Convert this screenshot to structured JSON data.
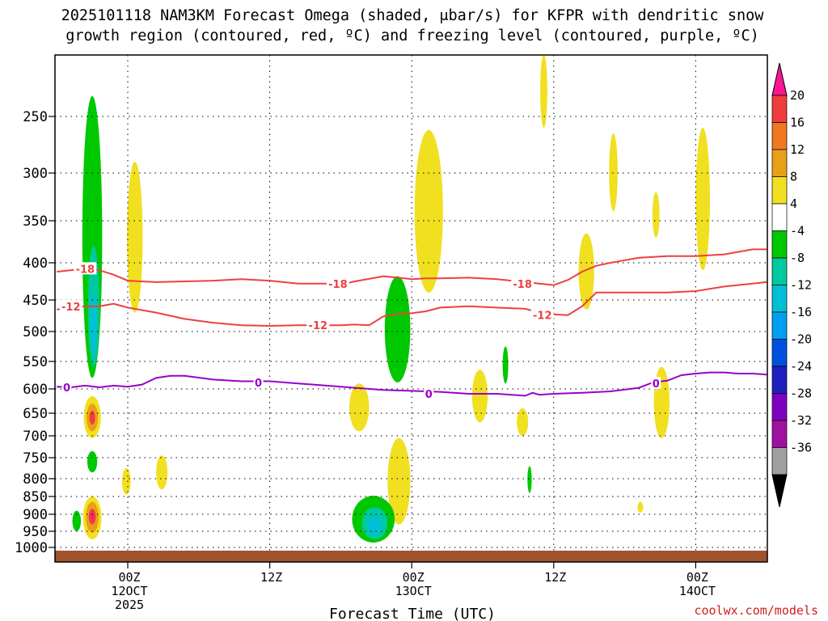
{
  "chart_data": {
    "type": "time-height cross section",
    "title_line1": "2025101118 NAM3KM Forecast Omega (shaded, μbar/s) for KFPR with dendritic snow",
    "title_line2": "growth region (contoured, red, ºC) and freezing level (contoured, purple, ºC)",
    "xlabel": "Forecast Time (UTC)",
    "credit": "coolwx.com/models",
    "xlim_hours": [
      -5,
      45
    ],
    "ylim_hpa": [
      1010,
      195
    ],
    "y_ticks": [
      250,
      300,
      350,
      400,
      450,
      500,
      550,
      600,
      650,
      700,
      750,
      800,
      850,
      900,
      950,
      1000
    ],
    "x_ticks": [
      {
        "hour": 0,
        "line1": "00Z",
        "line2": "12OCT",
        "line3": "2025"
      },
      {
        "hour": 10,
        "line1": "12Z",
        "line2": "",
        "line3": ""
      },
      {
        "hour": 20,
        "line1": "00Z",
        "line2": "13OCT",
        "line3": ""
      },
      {
        "hour": 30,
        "line1": "12Z",
        "line2": "",
        "line3": ""
      },
      {
        "hour": 40,
        "line1": "00Z",
        "line2": "14OCT",
        "line3": ""
      }
    ],
    "colorbar": {
      "labels": [
        "20",
        "16",
        "12",
        "8",
        "4",
        "-4",
        "-8",
        "-12",
        "-16",
        "-20",
        "-24",
        "-28",
        "-32",
        "-36"
      ],
      "colors": [
        "#ff1493",
        "#f03c3c",
        "#f07820",
        "#e8a018",
        "#f0e020",
        "#ffffff",
        "#00c800",
        "#00c8a0",
        "#00c0d8",
        "#00a0f0",
        "#0050e0",
        "#2020c0",
        "#8000c0",
        "#a010a0",
        "#a0a0a0",
        "#000000"
      ]
    },
    "contours": [
      {
        "name": "dgz -18",
        "label": "-18",
        "color": "#ee4040",
        "x": [
          -5,
          -3,
          -2,
          -1,
          0,
          2,
          4,
          6,
          8,
          10,
          12,
          14,
          15,
          16,
          18,
          20,
          21,
          22,
          24,
          26,
          28,
          29,
          30,
          31,
          32,
          33,
          34,
          36,
          38,
          40,
          42,
          44,
          45
        ],
        "p": [
          412,
          408,
          410,
          416,
          424,
          426,
          425,
          424,
          422,
          424,
          428,
          428,
          429,
          425,
          418,
          422,
          421,
          421,
          420,
          422,
          426,
          428,
          430,
          423,
          412,
          404,
          400,
          394,
          392,
          392,
          390,
          384,
          384
        ]
      },
      {
        "name": "dgz -12",
        "label": "-12",
        "color": "#ee4040",
        "x": [
          -5,
          -3,
          -2,
          -1,
          0,
          2,
          4,
          6,
          8,
          10,
          12,
          14,
          15,
          16,
          17,
          18,
          19,
          20,
          21,
          22,
          24,
          26,
          28,
          29,
          30,
          31,
          32,
          33,
          34,
          36,
          38,
          40,
          42,
          44,
          45
        ],
        "p": [
          465,
          460,
          460,
          456,
          462,
          470,
          480,
          486,
          490,
          491,
          490,
          490,
          490,
          489,
          490,
          476,
          472,
          471,
          468,
          462,
          460,
          462,
          464,
          470,
          473,
          474,
          460,
          440,
          440,
          440,
          440,
          438,
          432,
          428,
          426
        ]
      },
      {
        "name": "freezing level 0",
        "label": "0",
        "color": "#9900cc",
        "x": [
          -5,
          -4,
          -3,
          -2,
          -1,
          0,
          1,
          2,
          3,
          4,
          6,
          8,
          10,
          12,
          14,
          16,
          18,
          20,
          22,
          24,
          26,
          28,
          28.5,
          29,
          30,
          32,
          34,
          36,
          37,
          38,
          39,
          40,
          41,
          42,
          43,
          44,
          45
        ],
        "p": [
          596,
          597,
          594,
          597,
          594,
          596,
          592,
          580,
          576,
          576,
          583,
          586,
          586,
          590,
          594,
          598,
          602,
          604,
          606,
          610,
          610,
          614,
          608,
          612,
          610,
          608,
          605,
          598,
          588,
          585,
          575,
          572,
          570,
          570,
          572,
          572,
          574
        ]
      }
    ],
    "contour_labels": [
      {
        "text": "-18",
        "color": "#ee4040",
        "x": -3,
        "p": 408
      },
      {
        "text": "-18",
        "color": "#ee4040",
        "x": 14.8,
        "p": 428
      },
      {
        "text": "-18",
        "color": "#ee4040",
        "x": 27.8,
        "p": 428
      },
      {
        "text": "-12",
        "color": "#ee4040",
        "x": -4,
        "p": 460
      },
      {
        "text": "-12",
        "color": "#ee4040",
        "x": 13.4,
        "p": 490
      },
      {
        "text": "-12",
        "color": "#ee4040",
        "x": 29.2,
        "p": 474
      },
      {
        "text": "0",
        "color": "#9900cc",
        "x": -4.3,
        "p": 597
      },
      {
        "text": "0",
        "color": "#9900cc",
        "x": 9.2,
        "p": 588
      },
      {
        "text": "0",
        "color": "#9900cc",
        "x": 21.2,
        "p": 610
      },
      {
        "text": "0",
        "color": "#9900cc",
        "x": 37.2,
        "p": 590
      }
    ],
    "omega_features": [
      {
        "name": "rising column green",
        "color": "#00c800",
        "x": -2.5,
        "w": 1.4,
        "p_top": 232,
        "p_bot": 580
      },
      {
        "name": "rising column teal",
        "color": "#00c8a0",
        "x": -2.4,
        "w": 0.8,
        "p_top": 380,
        "p_bot": 560
      },
      {
        "name": "rising column cyan",
        "color": "#00c0d8",
        "x": -2.4,
        "w": 0.4,
        "p_top": 440,
        "p_bot": 540
      },
      {
        "name": "sinking 650 yellow",
        "color": "#f0e020",
        "x": -2.5,
        "w": 1.2,
        "p_top": 615,
        "p_bot": 705
      },
      {
        "name": "sinking 650 orange",
        "color": "#e8a018",
        "x": -2.5,
        "w": 0.8,
        "p_top": 630,
        "p_bot": 690
      },
      {
        "name": "sinking 650 red",
        "color": "#f03c3c",
        "x": -2.5,
        "w": 0.4,
        "p_top": 645,
        "p_bot": 675
      },
      {
        "name": "rising 760 green",
        "color": "#00c800",
        "x": -2.5,
        "w": 0.7,
        "p_top": 735,
        "p_bot": 785
      },
      {
        "name": "sinking 900 yellow",
        "color": "#f0e020",
        "x": -2.5,
        "w": 1.3,
        "p_top": 850,
        "p_bot": 975
      },
      {
        "name": "sinking 900 orange",
        "color": "#e8a018",
        "x": -2.5,
        "w": 0.9,
        "p_top": 865,
        "p_bot": 955
      },
      {
        "name": "sinking 900 red",
        "color": "#f03c3c",
        "x": -2.5,
        "w": 0.5,
        "p_top": 885,
        "p_bot": 930
      },
      {
        "name": "sinking 900 pink",
        "color": "#ff1493",
        "x": -2.5,
        "w": 0.2,
        "p_top": 895,
        "p_bot": 915
      },
      {
        "name": "rising 920 green",
        "color": "#00c800",
        "x": -3.6,
        "w": 0.6,
        "p_top": 890,
        "p_bot": 950
      },
      {
        "name": "sinking 320 yellow",
        "color": "#f0e020",
        "x": 0.5,
        "w": 1.1,
        "p_top": 290,
        "p_bot": 470
      },
      {
        "name": "sinking 800 yellow",
        "color": "#f0e020",
        "x": -0.1,
        "w": 0.6,
        "p_top": 775,
        "p_bot": 845
      },
      {
        "name": "sinking 780 yellow",
        "color": "#f0e020",
        "x": 2.4,
        "w": 0.8,
        "p_top": 745,
        "p_bot": 830
      },
      {
        "name": "sinking 650 yellow mid",
        "color": "#f0e020",
        "x": 16.3,
        "w": 1.4,
        "p_top": 590,
        "p_bot": 690
      },
      {
        "name": "rising 470 green",
        "color": "#00c800",
        "x": 19.0,
        "w": 1.8,
        "p_top": 418,
        "p_bot": 588
      },
      {
        "name": "sinking 800 yellow mid",
        "color": "#f0e020",
        "x": 19.1,
        "w": 1.6,
        "p_top": 705,
        "p_bot": 930
      },
      {
        "name": "rising 920 green mid",
        "color": "#00c800",
        "x": 17.3,
        "w": 3.0,
        "p_top": 848,
        "p_bot": 985
      },
      {
        "name": "rising 920 teal mid",
        "color": "#00c8a0",
        "x": 17.4,
        "w": 1.8,
        "p_top": 880,
        "p_bot": 975
      },
      {
        "name": "rising 920 cyan mid",
        "color": "#00c0d8",
        "x": 17.4,
        "w": 1.0,
        "p_top": 905,
        "p_bot": 960
      },
      {
        "name": "sinking 330 yellow",
        "color": "#f0e020",
        "x": 21.2,
        "w": 2.0,
        "p_top": 262,
        "p_bot": 440
      },
      {
        "name": "sinking 620 yellow",
        "color": "#f0e020",
        "x": 24.8,
        "w": 1.1,
        "p_top": 565,
        "p_bot": 670
      },
      {
        "name": "rising 560 green",
        "color": "#00c800",
        "x": 26.6,
        "w": 0.4,
        "p_top": 525,
        "p_bot": 590
      },
      {
        "name": "sinking 670 yellow",
        "color": "#f0e020",
        "x": 27.8,
        "w": 0.8,
        "p_top": 640,
        "p_bot": 700
      },
      {
        "name": "rising 810 green",
        "color": "#00c800",
        "x": 28.3,
        "w": 0.3,
        "p_top": 770,
        "p_bot": 840
      },
      {
        "name": "sinking 220 yellow",
        "color": "#f0e020",
        "x": 29.3,
        "w": 0.5,
        "p_top": 195,
        "p_bot": 260
      },
      {
        "name": "sinking 300 yellow",
        "color": "#f0e020",
        "x": 34.2,
        "w": 0.6,
        "p_top": 265,
        "p_bot": 340
      },
      {
        "name": "sinking 420 yellow",
        "color": "#f0e020",
        "x": 32.3,
        "w": 1.1,
        "p_top": 365,
        "p_bot": 465
      },
      {
        "name": "sinking 330 small yellow",
        "color": "#f0e020",
        "x": 37.2,
        "w": 0.5,
        "p_top": 320,
        "p_bot": 370
      },
      {
        "name": "sinking 880 yellow",
        "color": "#f0e020",
        "x": 36.1,
        "w": 0.4,
        "p_top": 865,
        "p_bot": 895
      },
      {
        "name": "sinking 630 yellow",
        "color": "#f0e020",
        "x": 37.6,
        "w": 1.1,
        "p_top": 560,
        "p_bot": 705
      },
      {
        "name": "sinking 320 yellow right",
        "color": "#f0e020",
        "x": 40.5,
        "w": 1.0,
        "p_top": 260,
        "p_bot": 410
      }
    ],
    "terrain_color": "#a0522d"
  }
}
